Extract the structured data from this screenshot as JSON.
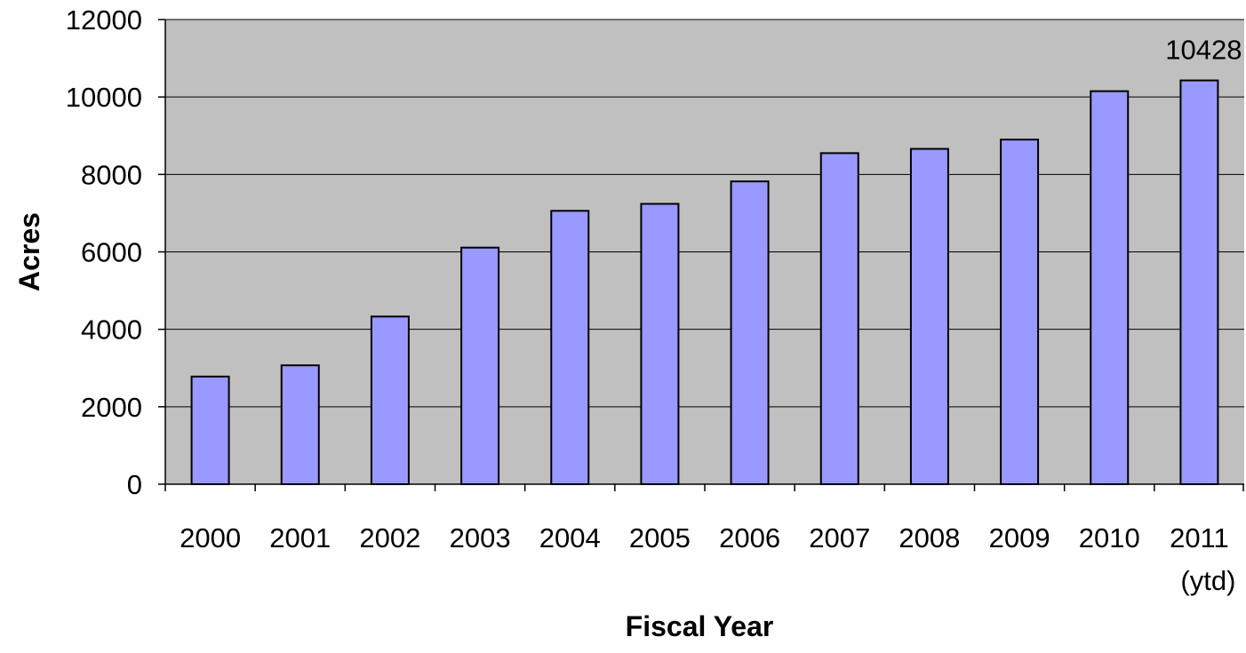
{
  "chart_data": {
    "type": "bar",
    "title": "",
    "xlabel": "Fiscal Year",
    "ylabel": "Acres",
    "categories": [
      "2000",
      "2001",
      "2002",
      "2003",
      "2004",
      "2005",
      "2006",
      "2007",
      "2008",
      "2009",
      "2010",
      "2011 (ytd)"
    ],
    "category_lines": [
      [
        "2000"
      ],
      [
        "2001"
      ],
      [
        "2002"
      ],
      [
        "2003"
      ],
      [
        "2004"
      ],
      [
        "2005"
      ],
      [
        "2006"
      ],
      [
        "2007"
      ],
      [
        "2008"
      ],
      [
        "2009"
      ],
      [
        "2010"
      ],
      [
        "2011",
        "(ytd)"
      ]
    ],
    "values": [
      2780,
      3070,
      4330,
      6110,
      7060,
      7240,
      7820,
      8550,
      8660,
      8900,
      10150,
      10428
    ],
    "ylim": [
      0,
      12000
    ],
    "yticks": [
      "0",
      "2000",
      "4000",
      "6000",
      "8000",
      "10000",
      "12000"
    ],
    "ytick_values": [
      0,
      2000,
      4000,
      6000,
      8000,
      10000,
      12000
    ],
    "data_labels": [
      {
        "index": 11,
        "text": "10428"
      }
    ],
    "grid": true,
    "legend": "none",
    "colors": {
      "bar_fill": "#9999ff",
      "bar_stroke": "#000000",
      "plot_background": "#c0c0c0",
      "gridline": "#000000"
    }
  }
}
